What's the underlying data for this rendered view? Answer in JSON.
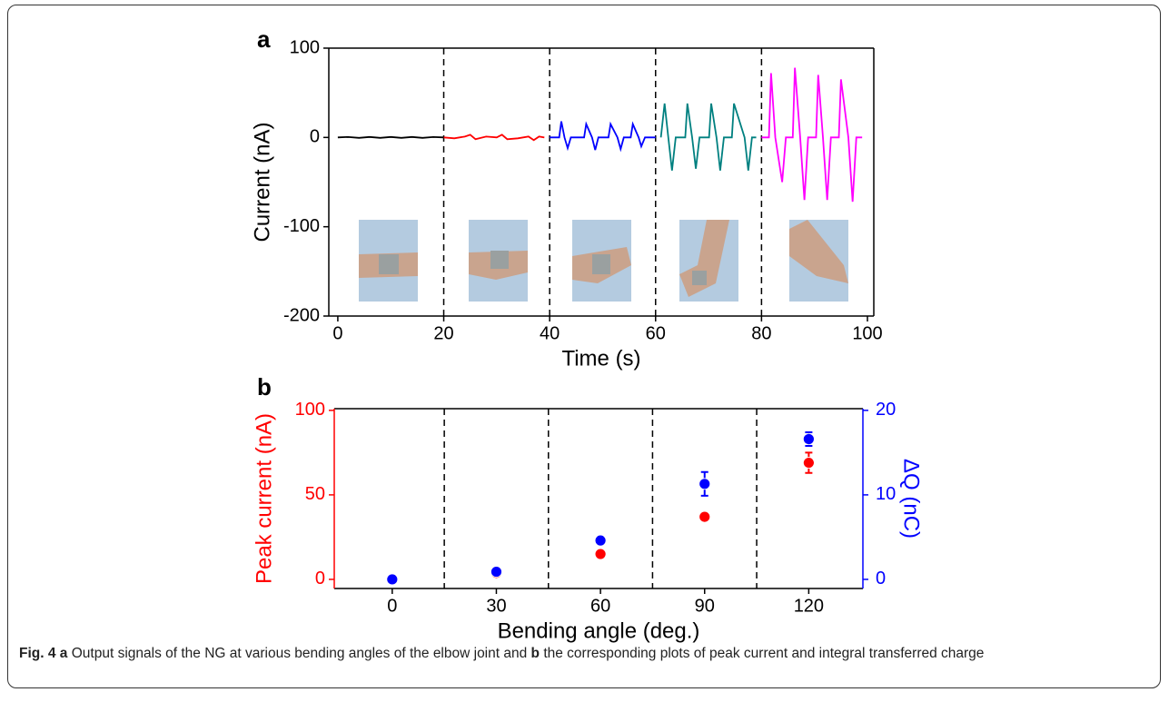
{
  "chart_data": [
    {
      "type": "line",
      "panel_label": "a",
      "xlabel": "Time (s)",
      "ylabel": "Current (nA)",
      "xlim": [
        -1.7,
        101.2
      ],
      "ylim": [
        -200,
        100
      ],
      "xticks": [
        0,
        20,
        40,
        60,
        80,
        100
      ],
      "yticks": [
        -200,
        -100,
        0,
        100
      ],
      "vlines": [
        20,
        40,
        60,
        80
      ],
      "series": [
        {
          "color": "#000000",
          "x": [
            0,
            2,
            4,
            6,
            8,
            10,
            12,
            14,
            16,
            18,
            20
          ],
          "values": [
            0,
            0.5,
            -0.5,
            0.5,
            -0.5,
            0.5,
            -0.5,
            0.5,
            -0.5,
            0.5,
            0
          ]
        },
        {
          "color": "#ff0000",
          "x": [
            20,
            22,
            24,
            25,
            26,
            28,
            30,
            31,
            32,
            34,
            36,
            37,
            38,
            39
          ],
          "values": [
            0,
            -1,
            1,
            3,
            -2,
            1,
            0,
            3,
            -2,
            -1,
            1,
            -3,
            1,
            0
          ]
        },
        {
          "color": "#0000ff",
          "x": [
            40,
            41.8,
            42.2,
            42.8,
            43.4,
            44,
            46.5,
            46.9,
            48,
            48.6,
            49.2,
            51.1,
            51.5,
            52.8,
            53.4,
            54,
            55.3,
            55.7,
            56.8,
            57.3,
            58,
            60
          ],
          "values": [
            0,
            0,
            18,
            0,
            -12,
            0,
            0,
            15,
            0,
            -14,
            0,
            0,
            15,
            0,
            -13,
            0,
            0,
            15,
            0,
            -10,
            0,
            0
          ]
        },
        {
          "color": "#008080",
          "x": [
            61,
            61.7,
            62.4,
            63.1,
            63.8,
            65.6,
            66,
            66.9,
            67.6,
            68.3,
            70.1,
            70.5,
            71.5,
            72.2,
            72.9,
            74.4,
            74.8,
            76.8,
            77.5,
            78.2,
            79
          ],
          "values": [
            0,
            38,
            0,
            -37,
            0,
            0,
            38,
            0,
            -35,
            0,
            0,
            38,
            0,
            -37,
            0,
            0,
            38,
            0,
            -37,
            0,
            0
          ]
        },
        {
          "color": "#ff00ff",
          "x": [
            80,
            81.4,
            81.8,
            82.6,
            83.9,
            84.6,
            85.9,
            86.3,
            87.3,
            88.1,
            88.8,
            90.3,
            90.7,
            91.6,
            92.4,
            93.1,
            94.6,
            95,
            96.4,
            97.2,
            97.9,
            99
          ],
          "values": [
            0,
            0,
            72,
            0,
            -50,
            0,
            0,
            78,
            0,
            -70,
            0,
            0,
            70,
            0,
            -70,
            0,
            0,
            65,
            0,
            -72,
            0,
            0
          ]
        }
      ]
    },
    {
      "type": "scatter",
      "panel_label": "b",
      "xlabel": "Bending angle (deg.)",
      "ylabel": "Peak current (nA)",
      "y2label": "ΔQ (nC)",
      "xlim": [
        -16.7,
        135.6
      ],
      "ylim": [
        -5.4,
        101
      ],
      "y2lim": [
        -1.08,
        20.2
      ],
      "xticks": [
        0,
        30,
        60,
        90,
        120
      ],
      "yticks": [
        0,
        50,
        100
      ],
      "y2ticks": [
        0,
        10,
        20
      ],
      "vlines": [
        15,
        45,
        75,
        105
      ],
      "x": [
        0,
        30,
        60,
        90,
        120
      ],
      "series": [
        {
          "color": "#ff0000",
          "values": [
            0,
            3.8,
            15,
            37,
            69
          ],
          "errors": [
            0.5,
            0.8,
            1,
            1,
            6
          ]
        },
        {
          "color": "#0000ff",
          "axis": "y2",
          "values": [
            0,
            0.9,
            4.6,
            11.3,
            16.6
          ],
          "errors": [
            0.1,
            0.2,
            0.3,
            1.4,
            0.8
          ]
        }
      ]
    }
  ],
  "caption": {
    "label": "Fig. 4",
    "a": "a",
    "text_a": "Output signals of the NG at various bending angles of the elbow joint and",
    "b": "b",
    "text_b": "the corresponding plots of peak current and integral transferred charge"
  }
}
